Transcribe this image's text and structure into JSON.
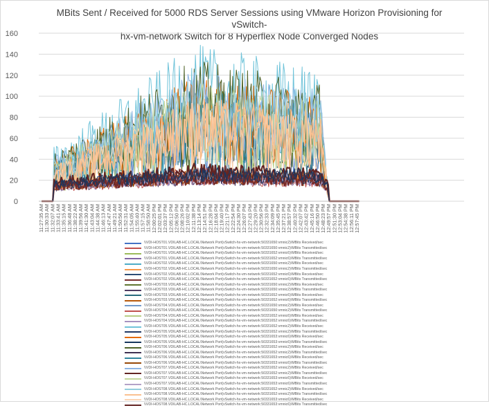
{
  "chart_data": {
    "type": "line",
    "title": "MBits Sent / Received for 5000 RDS Server Sessions using VMware Horizon Provisioning for vSwitch-hx-vm-network Switch for 8 Hyperflex Node Converged Nodes",
    "title_lines": [
      "MBits Sent / Received for 5000 RDS Server Sessions using VMware Horizon Provisioning for vSwitch-",
      "hx-vm-network Switch for 8 Hyperflex Node Converged Nodes"
    ],
    "xlabel": "",
    "ylabel": "",
    "ylim": [
      0,
      160
    ],
    "yticks": [
      0,
      20,
      40,
      60,
      80,
      100,
      120,
      140,
      160
    ],
    "grid": true,
    "legend_position": "bottom",
    "categories": [
      "11:27:35 AM",
      "11:30:33 AM",
      "11:32:07 AM",
      "11:33:41 AM",
      "11:35:15 AM",
      "11:36:48 AM",
      "11:38:22 AM",
      "11:39:56 AM",
      "11:41:30 AM",
      "11:43:04 AM",
      "11:44:38 AM",
      "11:46:13 AM",
      "11:47:47 AM",
      "11:49:21 AM",
      "11:50:56 AM",
      "11:52:31 AM",
      "11:54:05 AM",
      "11:55:40 AM",
      "11:57:15 AM",
      "11:58:50 AM",
      "12:00:25 PM",
      "12:02:01 PM",
      "12:03:37 PM",
      "12:05:12 PM",
      "12:06:50 PM",
      "12:08:26 PM",
      "12:10:02 PM",
      "12:11:38 PM",
      "12:13:14 PM",
      "12:14:51 PM",
      "12:16:28 PM",
      "12:18:04 PM",
      "12:19:40 PM",
      "12:21:17 PM",
      "12:22:54 PM",
      "12:24:30 PM",
      "12:26:07 PM",
      "12:27:43 PM",
      "12:29:20 PM",
      "12:30:56 PM",
      "12:32:33 PM",
      "12:34:09 PM",
      "12:35:45 PM",
      "12:37:21 PM",
      "12:38:57 PM",
      "12:40:32 PM",
      "12:42:07 PM",
      "12:43:42 PM",
      "12:45:16 PM",
      "12:46:50 PM",
      "12:48:23 PM",
      "12:49:57 PM",
      "12:51:30 PM",
      "12:53:04 PM",
      "12:54:38 PM",
      "12:56:11 PM",
      "12:57:45 PM"
    ],
    "envelope_note": "values per series estimated as envelopes: ramp 11:32 AM to peak ~12:25 PM, drop to 0 at ~12:46 PM",
    "series": [
      {
        "name": "\\\\VDI-HOST01.VDILAB-HC.LOCAL\\Network Port(vSwitch-hx-vm-network:50331650:vmnic2)\\MBits Received/sec",
        "color": "#4472c4",
        "peak": 90
      },
      {
        "name": "\\\\VDI-HOST01.VDILAB-HC.LOCAL\\Network Port(vSwitch-hx-vm-network:50331650:vmnic2)\\MBits Transmitted/sec",
        "color": "#c0504d",
        "peak": 40
      },
      {
        "name": "\\\\VDI-HOST01.VDILAB-HC.LOCAL\\Network Port(vSwitch-hx-vm-network:50331652:vmnic6)\\MBits Received/sec",
        "color": "#9bbb59",
        "peak": 95
      },
      {
        "name": "\\\\VDI-HOST01.VDILAB-HC.LOCAL\\Network Port(vSwitch-hx-vm-network:50331652:vmnic6)\\MBits Transmitted/sec",
        "color": "#8064a2",
        "peak": 35
      },
      {
        "name": "\\\\VDI-HOST02.VDILAB-HC.LOCAL\\Network Port(vSwitch-hx-vm-network:50331650:vmnic2)\\MBits Received/sec",
        "color": "#4bacc6",
        "peak": 100
      },
      {
        "name": "\\\\VDI-HOST02.VDILAB-HC.LOCAL\\Network Port(vSwitch-hx-vm-network:50331650:vmnic2)\\MBits Transmitted/sec",
        "color": "#f79646",
        "peak": 38
      },
      {
        "name": "\\\\VDI-HOST02.VDILAB-HC.LOCAL\\Network Port(vSwitch-hx-vm-network:50331652:vmnic6)\\MBits Received/sec",
        "color": "#2c4d75",
        "peak": 92
      },
      {
        "name": "\\\\VDI-HOST02.VDILAB-HC.LOCAL\\Network Port(vSwitch-hx-vm-network:50331652:vmnic6)\\MBits Transmitted/sec",
        "color": "#772c2a",
        "peak": 36
      },
      {
        "name": "\\\\VDI-HOST03.VDILAB-HC.LOCAL\\Network Port(vSwitch-hx-vm-network:50331650:vmnic2)\\MBits Received/sec",
        "color": "#5f7530",
        "peak": 110
      },
      {
        "name": "\\\\VDI-HOST03.VDILAB-HC.LOCAL\\Network Port(vSwitch-hx-vm-network:50331650:vmnic2)\\MBits Transmitted/sec",
        "color": "#4d3b62",
        "peak": 34
      },
      {
        "name": "\\\\VDI-HOST03.VDILAB-HC.LOCAL\\Network Port(vSwitch-hx-vm-network:50331652:vmnic6)\\MBits Received/sec",
        "color": "#276a7c",
        "peak": 95
      },
      {
        "name": "\\\\VDI-HOST03.VDILAB-HC.LOCAL\\Network Port(vSwitch-hx-vm-network:50331652:vmnic6)\\MBits Transmitted/sec",
        "color": "#b65708",
        "peak": 37
      },
      {
        "name": "\\\\VDI-HOST04.VDILAB-HC.LOCAL\\Network Port(vSwitch-hx-vm-network:50331650:vmnic2)\\MBits Received/sec",
        "color": "#729aca",
        "peak": 105
      },
      {
        "name": "\\\\VDI-HOST04.VDILAB-HC.LOCAL\\Network Port(vSwitch-hx-vm-network:50331650:vmnic2)\\MBits Transmitted/sec",
        "color": "#c0504d",
        "peak": 33
      },
      {
        "name": "\\\\VDI-HOST04.VDILAB-HC.LOCAL\\Network Port(vSwitch-hx-vm-network:50331652:vmnic6)\\MBits Received/sec",
        "color": "#b7cd84",
        "peak": 98
      },
      {
        "name": "\\\\VDI-HOST04.VDILAB-HC.LOCAL\\Network Port(vSwitch-hx-vm-network:50331652:vmnic6)\\MBits Transmitted/sec",
        "color": "#a692c0",
        "peak": 36
      },
      {
        "name": "\\\\VDI-HOST05.VDILAB-HC.LOCAL\\Network Port(vSwitch-hx-vm-network:50331652:vmnic2)\\MBits Received/sec",
        "color": "#6fc3d9",
        "peak": 150
      },
      {
        "name": "\\\\VDI-HOST05.VDILAB-HC.LOCAL\\Network Port(vSwitch-hx-vm-network:50331652:vmnic2)\\MBits Transmitted/sec",
        "color": "#1f3864",
        "peak": 40
      },
      {
        "name": "\\\\VDI-HOST05.VDILAB-HC.LOCAL\\Network Port(vSwitch-hx-vm-network:50331653:vmnic6)\\MBits Received/sec",
        "color": "#e46c0a",
        "peak": 120
      },
      {
        "name": "\\\\VDI-HOST05.VDILAB-HC.LOCAL\\Network Port(vSwitch-hx-vm-network:50331653:vmnic6)\\MBits Transmitted/sec",
        "color": "#17375e",
        "peak": 42
      },
      {
        "name": "\\\\VDI-HOST06.VDILAB-HC.LOCAL\\Network Port(vSwitch-hx-vm-network:50331652:vmnic2)\\MBits Received/sec",
        "color": "#4f6228",
        "peak": 135
      },
      {
        "name": "\\\\VDI-HOST06.VDILAB-HC.LOCAL\\Network Port(vSwitch-hx-vm-network:50331652:vmnic2)\\MBits Transmitted/sec",
        "color": "#3f3151",
        "peak": 38
      },
      {
        "name": "\\\\VDI-HOST06.VDILAB-HC.LOCAL\\Network Port(vSwitch-hx-vm-network:50331653:vmnic6)\\MBits Received/sec",
        "color": "#31859c",
        "peak": 110
      },
      {
        "name": "\\\\VDI-HOST06.VDILAB-HC.LOCAL\\Network Port(vSwitch-hx-vm-network:50331653:vmnic6)\\MBits Transmitted/sec",
        "color": "#974806",
        "peak": 36
      },
      {
        "name": "\\\\VDI-HOST07.VDILAB-HC.LOCAL\\Network Port(vSwitch-hx-vm-network:50331652:vmnic2)\\MBits Received/sec",
        "color": "#8eb4e3",
        "peak": 125
      },
      {
        "name": "\\\\VDI-HOST07.VDILAB-HC.LOCAL\\Network Port(vSwitch-hx-vm-network:50331652:vmnic2)\\MBits Transmitted/sec",
        "color": "#632523",
        "peak": 40
      },
      {
        "name": "\\\\VDI-HOST07.VDILAB-HC.LOCAL\\Network Port(vSwitch-hx-vm-network:50331653:vmnic6)\\MBits Received/sec",
        "color": "#c3d69b",
        "peak": 115
      },
      {
        "name": "\\\\VDI-HOST07.VDILAB-HC.LOCAL\\Network Port(vSwitch-hx-vm-network:50331653:vmnic6)\\MBits Transmitted/sec",
        "color": "#b3a2c7",
        "peak": 35
      },
      {
        "name": "\\\\VDI-HOST08.VDILAB-HC.LOCAL\\Network Port(vSwitch-hx-vm-network:50331652:vmnic2)\\MBits Received/sec",
        "color": "#93cddd",
        "peak": 120
      },
      {
        "name": "\\\\VDI-HOST08.VDILAB-HC.LOCAL\\Network Port(vSwitch-hx-vm-network:50331652:vmnic2)\\MBits Transmitted/sec",
        "color": "#fac090",
        "peak": 100
      },
      {
        "name": "\\\\VDI-HOST08.VDILAB-HC.LOCAL\\Network Port(vSwitch-hx-vm-network:50331653:vmnic6)\\MBits Received/sec",
        "color": "#fcd5b4",
        "peak": 95
      },
      {
        "name": "\\\\VDI-HOST08.VDILAB-HC.LOCAL\\Network Port(vSwitch-hx-vm-network:50331653:vmnic6)\\MBits Transmitted/sec",
        "color": "#632523",
        "peak": 45
      }
    ]
  }
}
